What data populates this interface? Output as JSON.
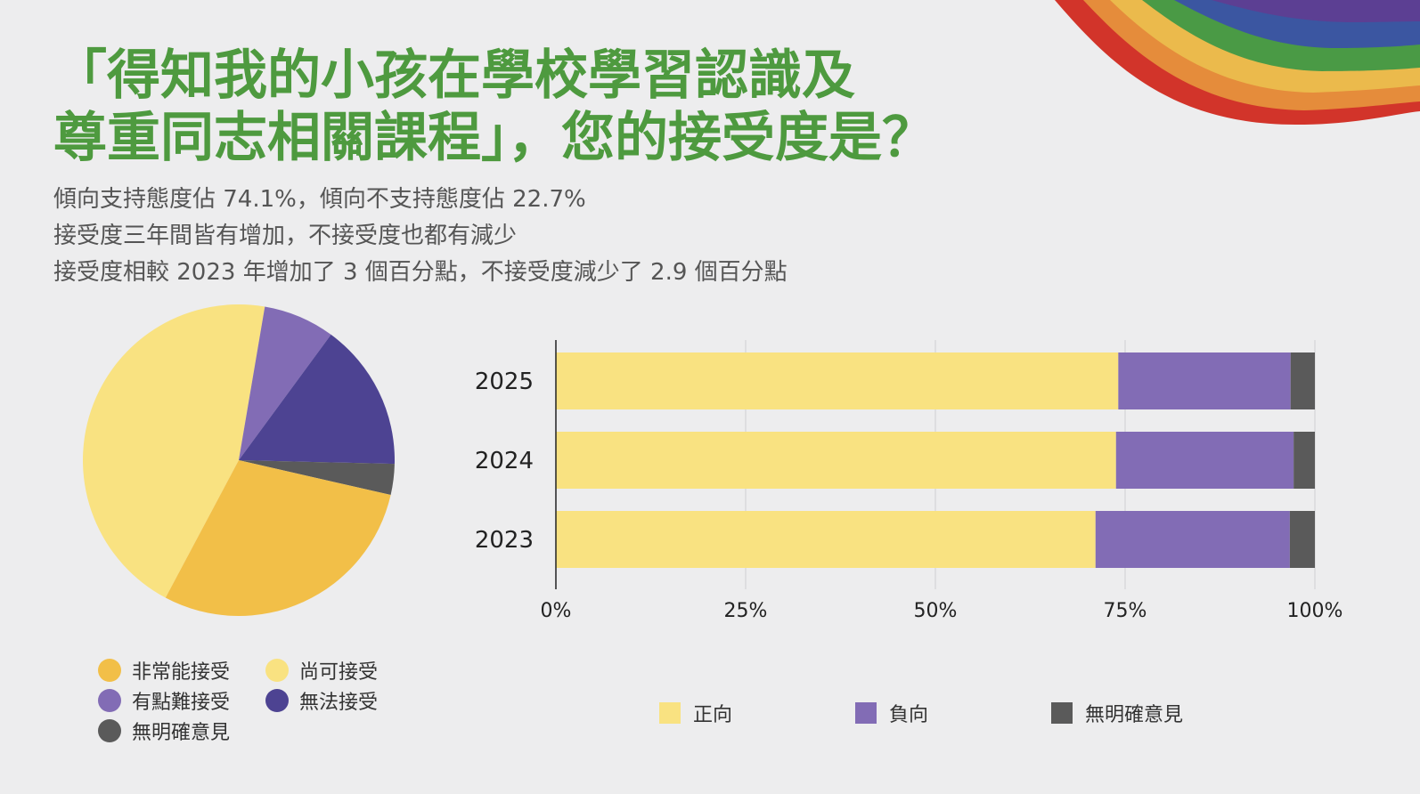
{
  "title": {
    "line1": "「得知我的小孩在學校學習認識及",
    "line2": "尊重同志相關課程」，您的接受度是？"
  },
  "subtitle": {
    "line1": "傾向支持態度佔 74.1%，傾向不支持態度佔 22.7%",
    "line2": "接受度三年間皆有增加，不接受度也都有減少",
    "line3": "接受度相較 2023 年增加了 3 個百分點，不接受度減少了 2.9 個百分點"
  },
  "colors": {
    "background": "#ededee",
    "title": "#4e9a3f",
    "very_accept": "#f2bf48",
    "acceptable": "#f9e281",
    "somewhat_hard": "#826cb5",
    "cannot_accept": "#4d4392",
    "no_opinion": "#5a5a5a",
    "positive": "#f9e281",
    "negative": "#826cb5",
    "unclear": "#5a5a5a",
    "rainbow": [
      "#d2342a",
      "#e58c3b",
      "#ebba4c",
      "#4a9a45",
      "#3b56a1",
      "#5c3f93"
    ]
  },
  "chart_data": [
    {
      "type": "pie",
      "start_angle_deg": 208,
      "slices": [
        {
          "label": "尚可接受",
          "value": 44.9,
          "color": "#f9e281"
        },
        {
          "label": "有點難接受",
          "value": 7.4,
          "color": "#826cb5"
        },
        {
          "label": "無法接受",
          "value": 15.3,
          "color": "#4d4392"
        },
        {
          "label": "無明確意見",
          "value": 3.2,
          "color": "#5a5a5a"
        },
        {
          "label": "非常能接受",
          "value": 29.2,
          "color": "#f2bf48"
        }
      ],
      "legend": [
        {
          "label": "非常能接受",
          "color": "#f2bf48"
        },
        {
          "label": "尚可接受",
          "color": "#f9e281"
        },
        {
          "label": "有點難接受",
          "color": "#826cb5"
        },
        {
          "label": "無法接受",
          "color": "#4d4392"
        },
        {
          "label": "無明確意見",
          "color": "#5a5a5a"
        }
      ]
    },
    {
      "type": "bar",
      "orientation": "horizontal",
      "stacked": true,
      "categories": [
        "2025",
        "2024",
        "2023"
      ],
      "series": [
        {
          "name": "正向",
          "values": [
            74.1,
            73.8,
            71.1
          ],
          "color": "#f9e281"
        },
        {
          "name": "負向",
          "values": [
            22.7,
            23.4,
            25.6
          ],
          "color": "#826cb5"
        },
        {
          "name": "無明確意見",
          "values": [
            3.2,
            2.8,
            3.3
          ],
          "color": "#5a5a5a"
        }
      ],
      "xlim": [
        0,
        100
      ],
      "xticks": [
        "0%",
        "25%",
        "50%",
        "75%",
        "100%"
      ],
      "grid": true,
      "legend_position": "bottom"
    }
  ]
}
